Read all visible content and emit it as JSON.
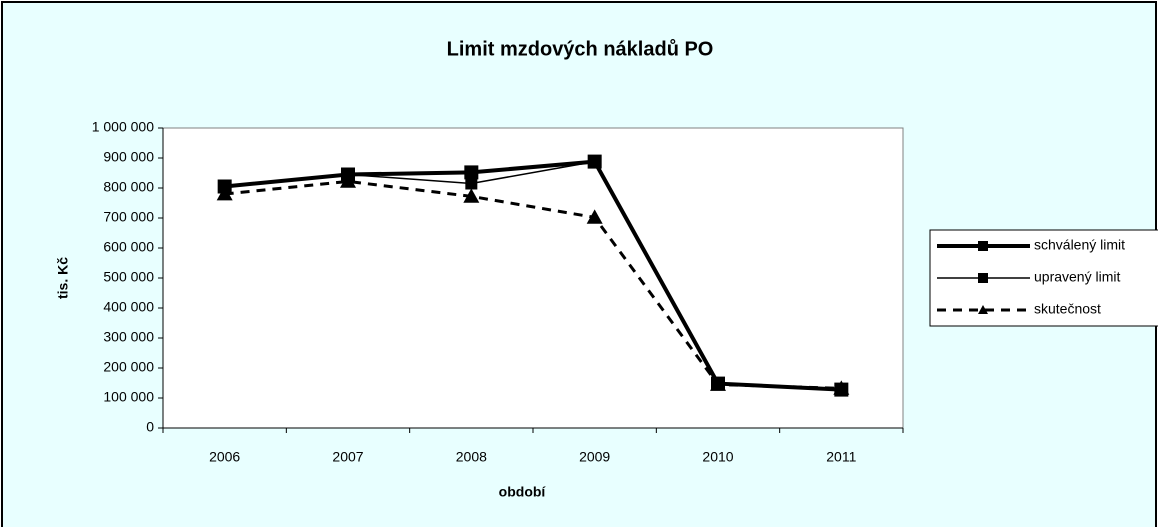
{
  "chart_data": {
    "type": "line",
    "title": "Limit mzdových nákladů PO",
    "x_label": "období",
    "y_label": "tis. Kč",
    "categories": [
      "2006",
      "2007",
      "2008",
      "2009",
      "2010",
      "2011"
    ],
    "series": [
      {
        "name": "schválený limit",
        "color": "#000000",
        "values": [
          805000,
          845000,
          852000,
          888000,
          148000,
          128000
        ]
      },
      {
        "name": "upravený limit",
        "color": "#000000",
        "values": [
          805000,
          845000,
          815000,
          888000,
          148000,
          128000
        ]
      },
      {
        "name": "skutečnost",
        "color": "#000000",
        "values": [
          780000,
          822000,
          772000,
          702000,
          145000,
          132000
        ]
      }
    ],
    "ylim": [
      0,
      1000000
    ],
    "yticks": [
      {
        "value": 0,
        "label": "0"
      },
      {
        "value": 100000,
        "label": "100 000"
      },
      {
        "value": 200000,
        "label": "200 000"
      },
      {
        "value": 300000,
        "label": "300 000"
      },
      {
        "value": 400000,
        "label": "400 000"
      },
      {
        "value": 500000,
        "label": "500 000"
      },
      {
        "value": 600000,
        "label": "600 000"
      },
      {
        "value": 700000,
        "label": "700 000"
      },
      {
        "value": 800000,
        "label": "800 000"
      },
      {
        "value": 900000,
        "label": "900 000"
      },
      {
        "value": 1000000,
        "label": "1 000 000"
      }
    ],
    "legend": "right"
  }
}
